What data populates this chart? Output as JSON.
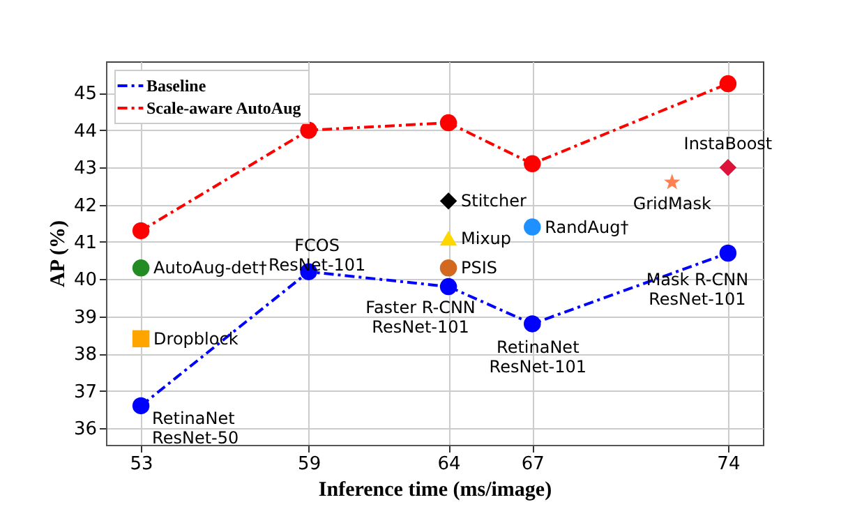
{
  "chart_data": {
    "type": "line",
    "xlabel": "Inference time (ms/image)",
    "ylabel": "AP (%)",
    "x": [
      53,
      59,
      64,
      67,
      74
    ],
    "xlim": [
      51.75,
      75.25
    ],
    "xticks": [
      53,
      59,
      64,
      67,
      74
    ],
    "ylim": [
      35.55,
      45.85
    ],
    "yticks": [
      36,
      37,
      38,
      39,
      40,
      41,
      42,
      43,
      44,
      45
    ],
    "grid": true,
    "legend": "top left",
    "line_style": "dashed",
    "series": [
      {
        "name": "Baseline",
        "color": "#0000ff",
        "marker": "circle",
        "values": [
          36.6,
          40.2,
          39.8,
          38.8,
          40.7
        ]
      },
      {
        "name": "Scale-aware AutoAug",
        "color": "#ff0000",
        "marker": "circle",
        "values": [
          41.3,
          44.0,
          44.2,
          43.1,
          45.25
        ]
      },
      {
        "name": "AutoAug-det†",
        "color": "#228b22",
        "type": "scatter",
        "marker": "circle",
        "x": [
          53
        ],
        "values": [
          40.3
        ]
      },
      {
        "name": "Dropblock",
        "color": "#ffa500",
        "type": "scatter",
        "marker": "square",
        "x": [
          53
        ],
        "values": [
          38.4
        ]
      },
      {
        "name": "Stitcher",
        "color": "#000000",
        "type": "scatter",
        "marker": "diamond",
        "x": [
          64
        ],
        "values": [
          42.1
        ]
      },
      {
        "name": "Mixup",
        "color": "#ffd700",
        "type": "scatter",
        "marker": "triangle",
        "x": [
          64
        ],
        "values": [
          41.1
        ]
      },
      {
        "name": "PSIS",
        "color": "#d2691e",
        "type": "scatter",
        "marker": "circle",
        "x": [
          64
        ],
        "values": [
          40.3
        ]
      },
      {
        "name": "RandAug†",
        "color": "#1e90ff",
        "type": "scatter",
        "marker": "circle",
        "x": [
          67
        ],
        "values": [
          41.4
        ]
      },
      {
        "name": "GridMask",
        "color": "#ff7f50",
        "type": "scatter",
        "marker": "star",
        "x": [
          72
        ],
        "values": [
          42.6
        ]
      },
      {
        "name": "InstaBoost",
        "color": "#dc143c",
        "type": "scatter",
        "marker": "diamond",
        "x": [
          74
        ],
        "values": [
          43.0
        ]
      }
    ],
    "annotations": [
      {
        "text": "RetinaNet\nResNet-50",
        "x": 53,
        "y": 36.6
      },
      {
        "text": "FCOS\nResNet-101",
        "x": 59,
        "y": 40.2
      },
      {
        "text": "Faster R-CNN\nResNet-101",
        "x": 64,
        "y": 39.8
      },
      {
        "text": "RetinaNet\nResNet-101",
        "x": 67,
        "y": 38.8
      },
      {
        "text": "Mask R-CNN\nResNet-101",
        "x": 74,
        "y": 40.7
      }
    ]
  }
}
